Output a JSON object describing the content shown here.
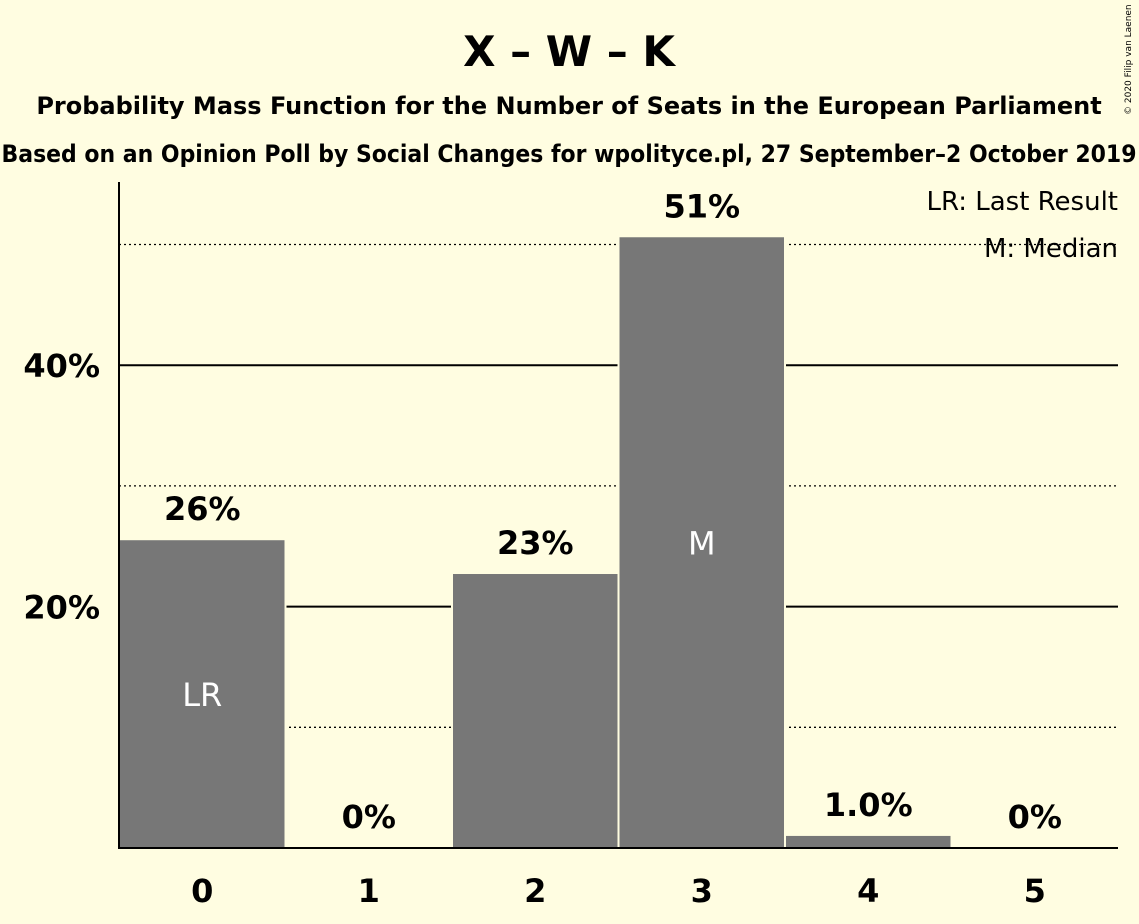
{
  "title": "X – W – K",
  "subtitle": "Probability Mass Function for the Number of Seats in the European Parliament",
  "source": "Based on an Opinion Poll by Social Changes for wpolityce.pl, 27 September–2 October 2019",
  "copyright": "© 2020 Filip van Laenen",
  "legend": {
    "last_result": "LR: Last Result",
    "median": "M: Median"
  },
  "colors": {
    "background": "#fffde1",
    "bar": "#777777",
    "bar_label_inside": "#ffffff",
    "text": "#000000"
  },
  "chart_data": {
    "type": "bar",
    "categories": [
      "0",
      "1",
      "2",
      "3",
      "4",
      "5"
    ],
    "values": [
      25.5,
      0,
      22.7,
      50.6,
      1.0,
      0
    ],
    "value_labels": [
      "26%",
      "0%",
      "23%",
      "51%",
      "1.0%",
      "0%"
    ],
    "bar_markers": [
      "LR",
      "",
      "",
      "M",
      "",
      ""
    ],
    "ylim": [
      0,
      55
    ],
    "y_ticks": [
      {
        "value": 20,
        "label": "20%"
      },
      {
        "value": 40,
        "label": "40%"
      }
    ],
    "minor_gridlines": [
      10,
      30,
      50
    ],
    "legend_placement": "top-right",
    "grid": true
  }
}
